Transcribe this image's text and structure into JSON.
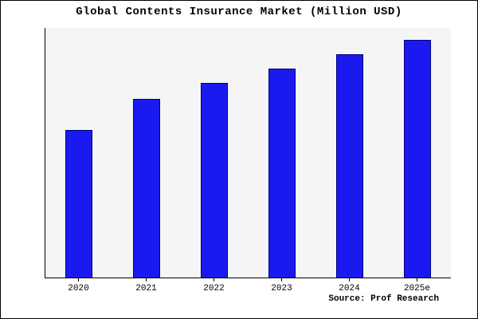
{
  "source": "Source: Prof Research",
  "colors": {
    "bar_fill": "#1a1af0",
    "bar_border": "#000080",
    "plot_background": "#f5f5f5",
    "axis": "#000000",
    "frame_border": "#000000",
    "background": "#ffffff"
  },
  "chart_data": {
    "type": "bar",
    "title": "Global Contents Insurance Market (Million USD)",
    "categories": [
      "2020",
      "2021",
      "2022",
      "2023",
      "2024",
      "2025e"
    ],
    "values": [
      62,
      75,
      82,
      88,
      94,
      100
    ],
    "values_estimated": true,
    "xlabel": "",
    "ylabel": "",
    "ylim": [
      0,
      105
    ],
    "grid": false,
    "legend": false,
    "y_axis_tick_labels_visible": false
  }
}
